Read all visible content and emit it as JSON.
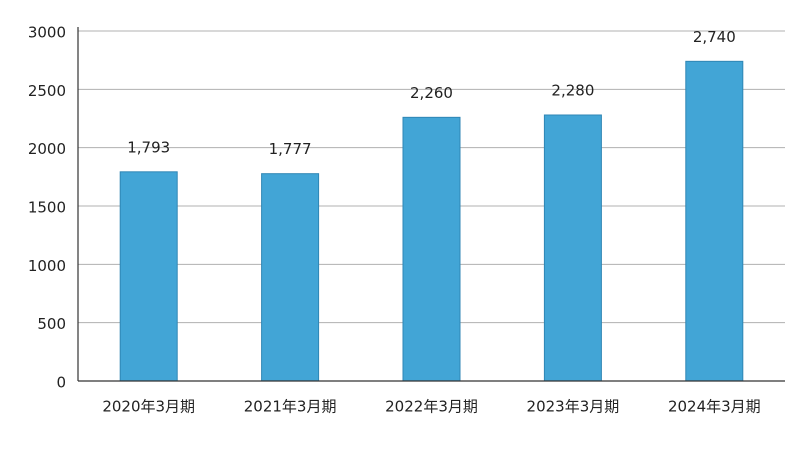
{
  "chart_data": {
    "type": "bar",
    "categories": [
      "2020年3月期",
      "2021年3月期",
      "2022年3月期",
      "2023年3月期",
      "2024年3月期"
    ],
    "values": [
      1793,
      1777,
      2260,
      2280,
      2740
    ],
    "value_labels": [
      "1,793",
      "1,777",
      "2,260",
      "2,280",
      "2,740"
    ],
    "color": "#42a5d6",
    "ylim": [
      0,
      3000
    ],
    "yticks": [
      0,
      500,
      1000,
      1500,
      2000,
      2500,
      3000
    ],
    "grid": true
  }
}
